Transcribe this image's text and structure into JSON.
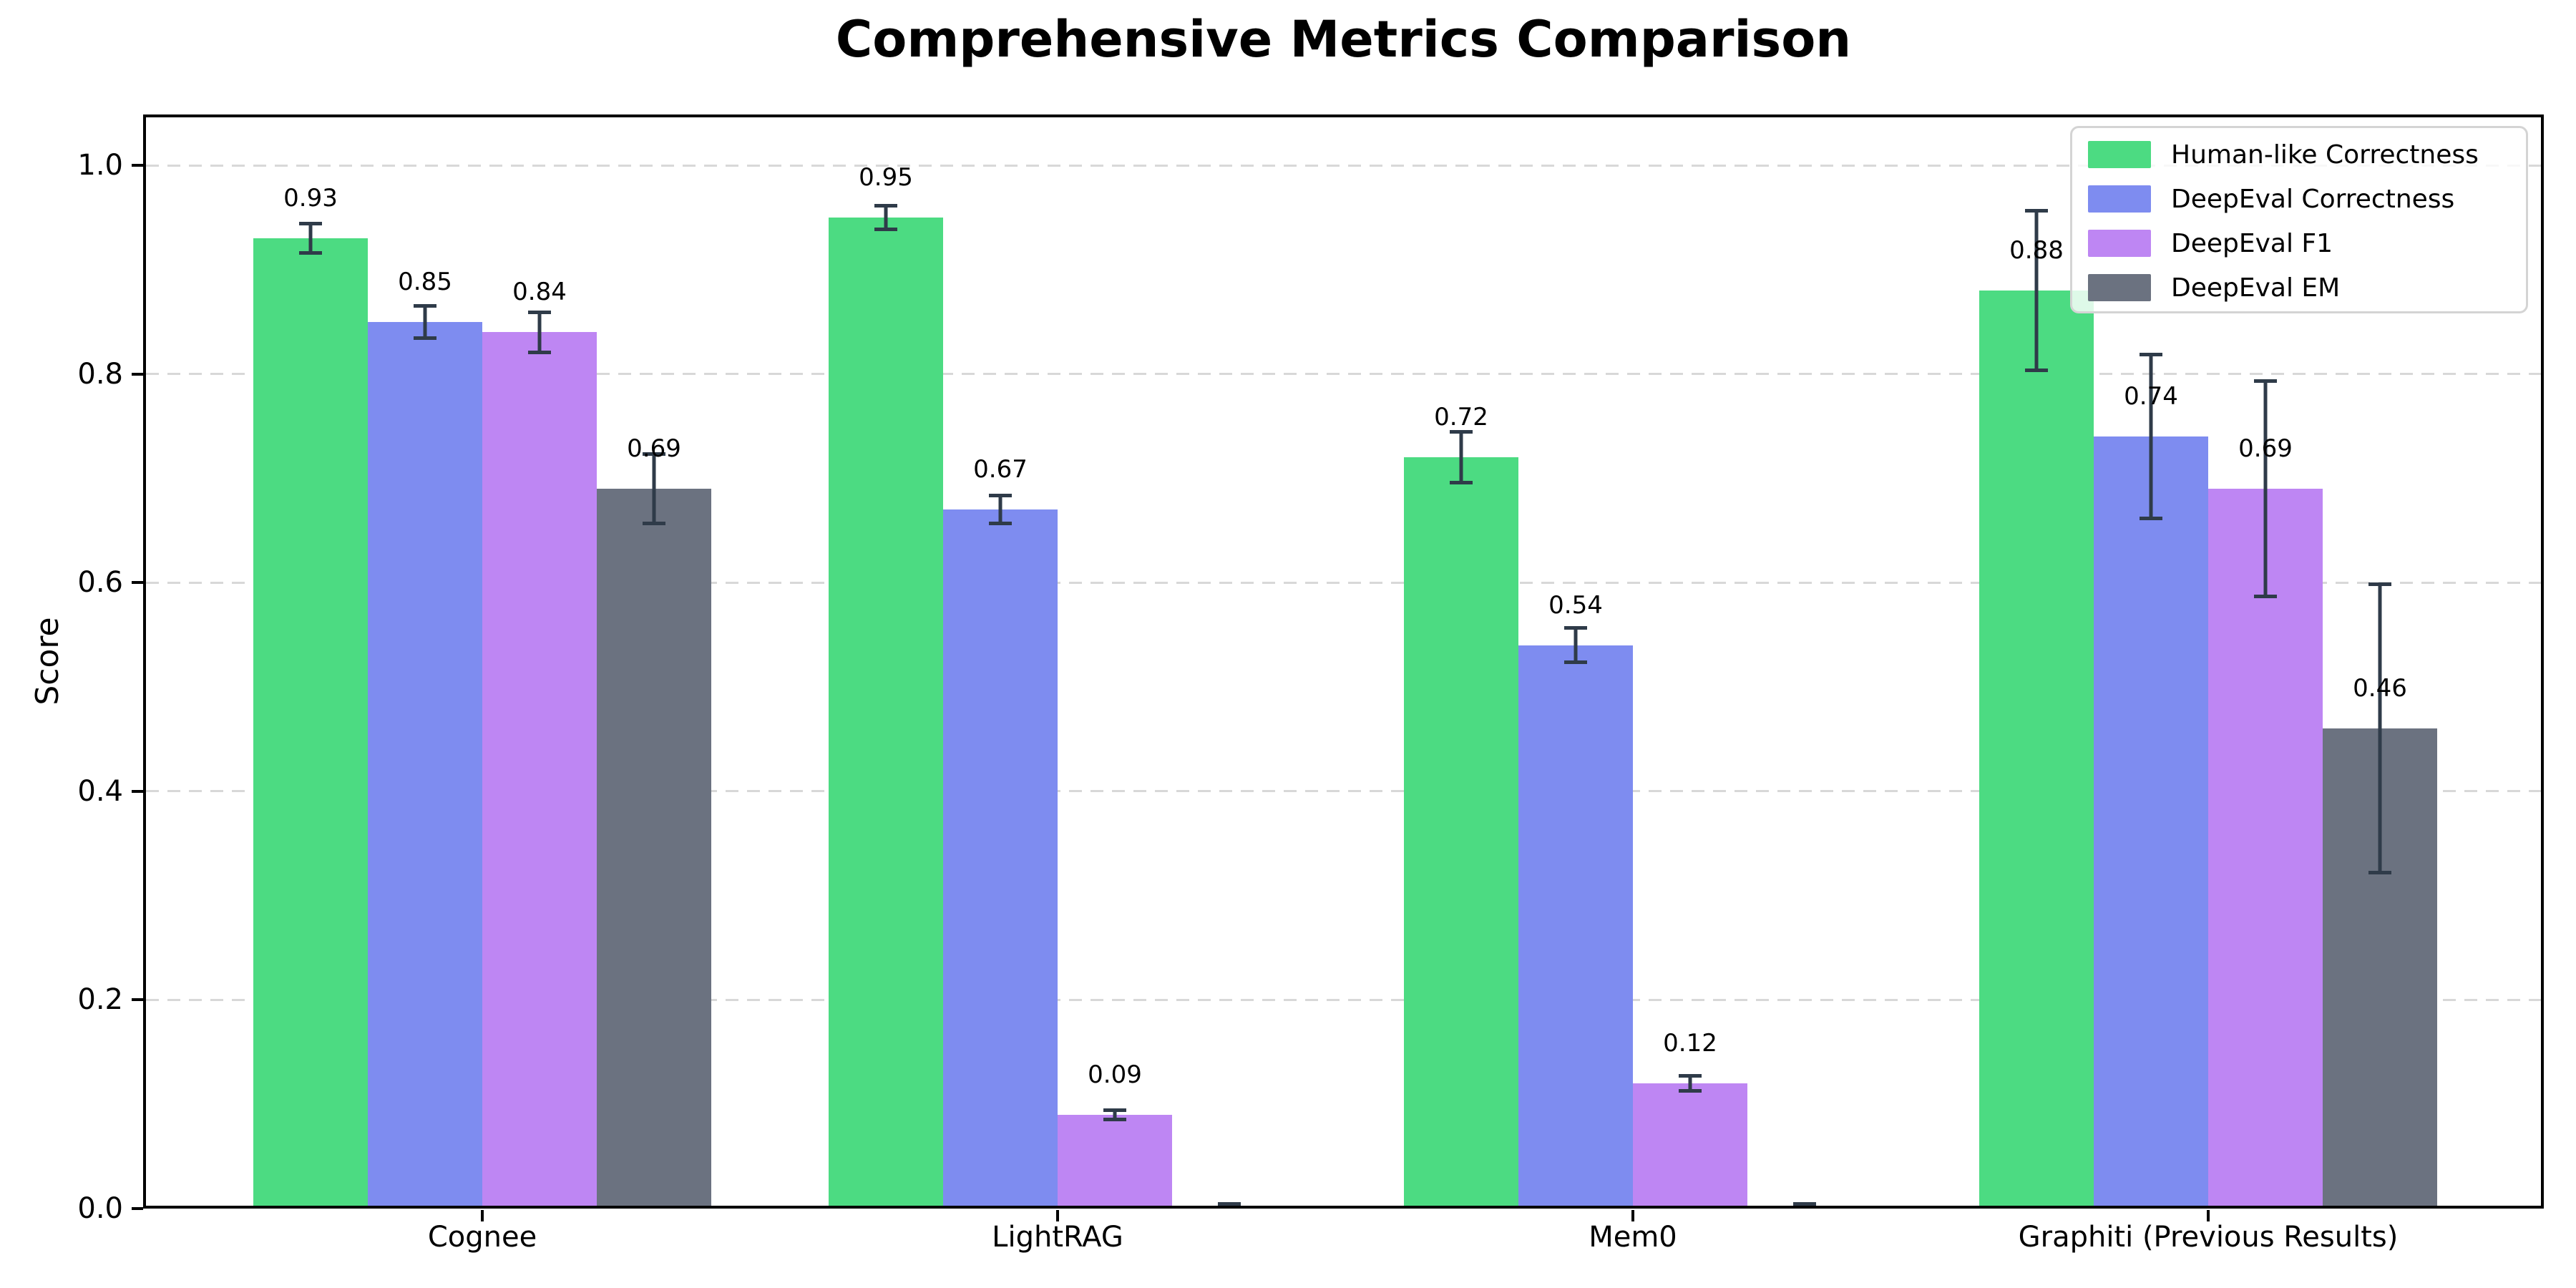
{
  "chart_data": {
    "type": "bar",
    "title": "Comprehensive Metrics Comparison",
    "ylabel": "Score",
    "xlabel": "",
    "categories": [
      "Cognee",
      "LightRAG",
      "Mem0",
      "Graphiti (Previous Results)"
    ],
    "series": [
      {
        "name": "Human-like Correctness",
        "color": "#4cdb82",
        "values": [
          0.93,
          0.95,
          0.72,
          0.88
        ],
        "errors": [
          0.016,
          0.013,
          0.026,
          0.078
        ],
        "labels": [
          "0.93",
          "0.95",
          "0.72",
          "0.88"
        ]
      },
      {
        "name": "DeepEval Correctness",
        "color": "#7e8cf0",
        "values": [
          0.85,
          0.67,
          0.54,
          0.74
        ],
        "errors": [
          0.017,
          0.015,
          0.018,
          0.08
        ],
        "labels": [
          "0.85",
          "0.67",
          "0.54",
          "0.74"
        ]
      },
      {
        "name": "DeepEval F1",
        "color": "#be86f3",
        "values": [
          0.84,
          0.09,
          0.12,
          0.69
        ],
        "errors": [
          0.021,
          0.006,
          0.009,
          0.105
        ],
        "labels": [
          "0.84",
          "0.09",
          "0.12",
          "0.69"
        ]
      },
      {
        "name": "DeepEval EM",
        "color": "#6b7280",
        "values": [
          0.69,
          0.0,
          0.0,
          0.46
        ],
        "errors": [
          0.035,
          0.005,
          0.005,
          0.14
        ],
        "labels": [
          "0.69",
          null,
          null,
          "0.46"
        ]
      }
    ],
    "yticks": [
      "0.0",
      "0.2",
      "0.4",
      "0.6",
      "0.8",
      "1.0"
    ],
    "ytick_values": [
      0.0,
      0.2,
      0.4,
      0.6,
      0.8,
      1.0
    ],
    "ylim": [
      0,
      1.05
    ],
    "grid": "horizontal-dashed",
    "grid_color": "#d8d8d8",
    "error_bar_color": "#2f3b49",
    "legend_position": "upper right",
    "zero_bars_unlabeled": true
  }
}
